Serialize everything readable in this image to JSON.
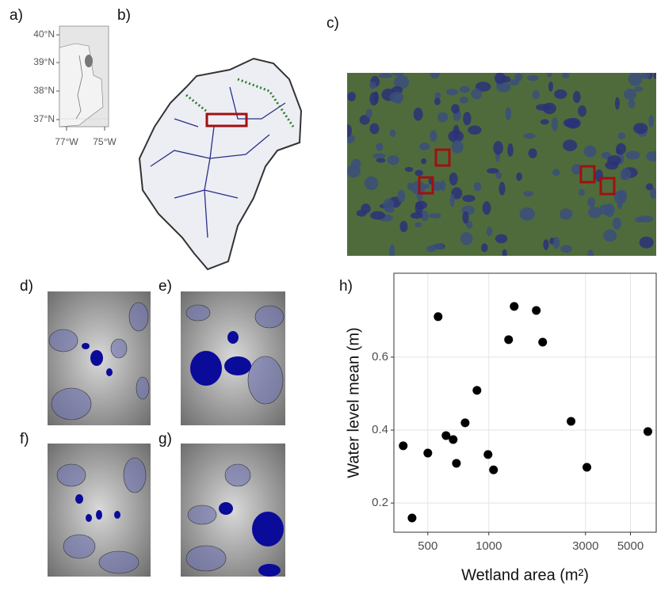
{
  "panel_labels": [
    "a)",
    "b)",
    "c)",
    "d)",
    "e)",
    "f)",
    "g)",
    "h)"
  ],
  "map": {
    "lat_labels": [
      "40°N",
      "39°N",
      "38°N",
      "37°N"
    ],
    "lon_labels": [
      "77°W",
      "75°W"
    ]
  },
  "chart_data": {
    "type": "scatter",
    "x_label": "Wetland area (m²)",
    "y_label": "Water level mean (m)",
    "x": [
      378,
      418,
      500,
      562,
      615,
      667,
      692,
      764,
      874,
      991,
      1055,
      1252,
      1334,
      1715,
      1844,
      2546,
      3048,
      6094
    ],
    "series": [
      {
        "color": "#000000",
        "values": [
          0.357,
          0.159,
          0.337,
          0.711,
          0.385,
          0.374,
          0.309,
          0.42,
          0.509,
          0.333,
          0.291,
          0.648,
          0.739,
          0.728,
          0.641,
          0.424,
          0.298,
          0.396
        ]
      }
    ],
    "xscale": "log",
    "xlim": [
      340,
      6700
    ],
    "ylim": [
      0.12,
      0.83
    ],
    "xticks": [
      500,
      1000,
      3000,
      5000
    ],
    "yticks": [
      0.2,
      0.4,
      0.6
    ],
    "grid": true
  }
}
